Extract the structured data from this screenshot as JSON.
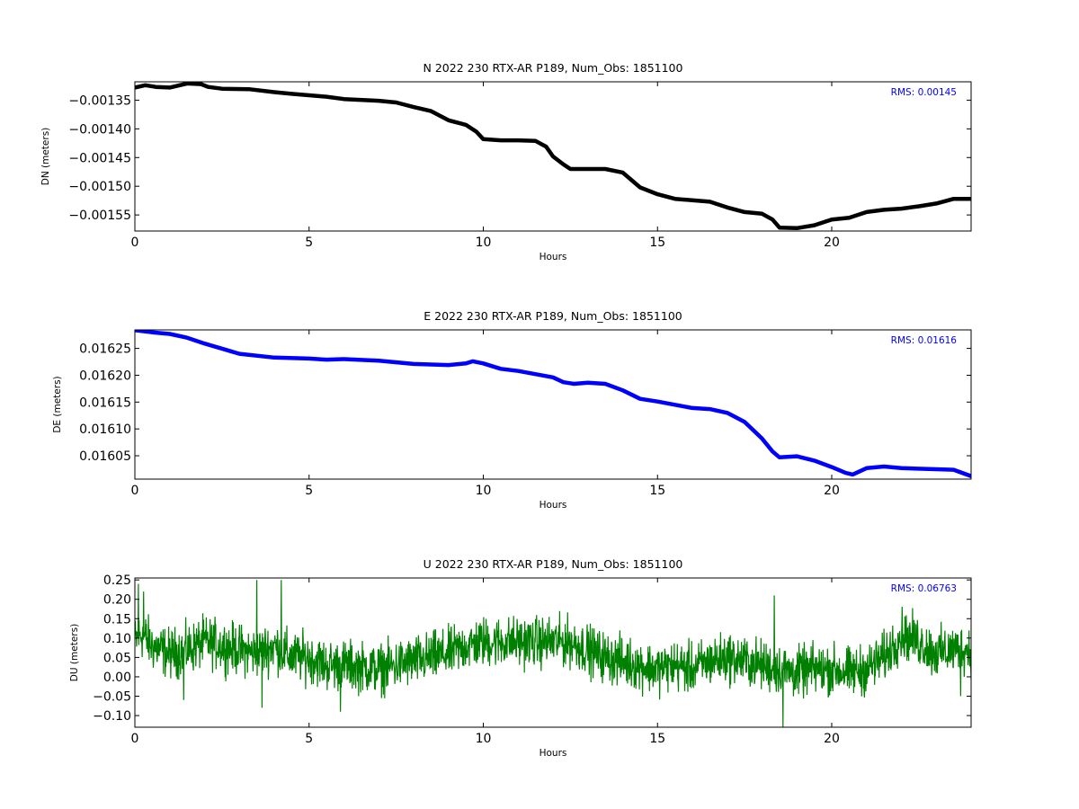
{
  "chart_data": [
    {
      "type": "line",
      "title": "N 2022 230 RTX-AR  P189, Num_Obs: 1851100",
      "xlabel": "Hours",
      "ylabel": "DN (meters)",
      "xlim": [
        0,
        24
      ],
      "ylim": [
        -0.001578,
        -0.001318
      ],
      "xticks": [
        0,
        5,
        10,
        15,
        20
      ],
      "yticks": [
        -0.00135,
        -0.0014,
        -0.00145,
        -0.0015,
        -0.00155
      ],
      "xtick_labels": [
        "0",
        "5",
        "10",
        "15",
        "20"
      ],
      "ytick_labels": [
        "−0.00135",
        "−0.00140",
        "−0.00145",
        "−0.00150",
        "−0.00155"
      ],
      "annotation": "RMS:  0.00145",
      "annotation_color": "#0000ff",
      "series": [
        {
          "color": "#000000",
          "x": [
            0,
            0.3,
            0.6,
            1.0,
            1.5,
            1.9,
            2.1,
            2.5,
            3.3,
            4.0,
            4.5,
            5.5,
            6.0,
            7.0,
            7.5,
            8.0,
            8.5,
            9.0,
            9.5,
            9.8,
            10.0,
            10.5,
            11.0,
            11.5,
            11.8,
            12.0,
            12.3,
            12.5,
            13.5,
            14.0,
            14.5,
            15.0,
            15.5,
            16.5,
            17.0,
            17.5,
            18.0,
            18.3,
            18.5,
            19.0,
            19.5,
            20.0,
            20.5,
            21.0,
            21.5,
            22.0,
            22.5,
            23.0,
            23.5,
            24.0
          ],
          "y": [
            -0.001328,
            -0.001324,
            -0.001327,
            -0.001328,
            -0.001321,
            -0.001322,
            -0.001327,
            -0.00133,
            -0.001331,
            -0.001336,
            -0.001339,
            -0.001344,
            -0.001348,
            -0.001351,
            -0.001354,
            -0.001362,
            -0.001369,
            -0.001385,
            -0.001393,
            -0.001405,
            -0.001418,
            -0.00142,
            -0.00142,
            -0.001421,
            -0.001431,
            -0.001448,
            -0.001462,
            -0.00147,
            -0.00147,
            -0.001476,
            -0.001502,
            -0.001514,
            -0.001522,
            -0.001527,
            -0.001537,
            -0.001545,
            -0.001548,
            -0.001558,
            -0.001572,
            -0.001573,
            -0.001568,
            -0.001558,
            -0.001555,
            -0.001545,
            -0.001541,
            -0.001539,
            -0.001535,
            -0.00153,
            -0.001522,
            -0.001522
          ]
        }
      ]
    },
    {
      "type": "line",
      "title": "E 2022 230 RTX-AR  P189, Num_Obs: 1851100",
      "xlabel": "Hours",
      "ylabel": "DE (meters)",
      "xlim": [
        0,
        24
      ],
      "ylim": [
        0.0160065,
        0.0162845
      ],
      "xticks": [
        0,
        5,
        10,
        15,
        20
      ],
      "yticks": [
        0.01625,
        0.0162,
        0.01615,
        0.0161,
        0.01605
      ],
      "xtick_labels": [
        "0",
        "5",
        "10",
        "15",
        "20"
      ],
      "ytick_labels": [
        "0.01625",
        "0.01620",
        "0.01615",
        "0.01610",
        "0.01605"
      ],
      "annotation": "RMS:  0.01616",
      "annotation_color": "#0000ff",
      "series": [
        {
          "color": "#0000ff",
          "x": [
            0,
            0.5,
            1.0,
            1.5,
            2.0,
            3.0,
            4.0,
            5.0,
            5.5,
            6.0,
            7.0,
            8.0,
            9.0,
            9.5,
            9.7,
            10.0,
            10.5,
            11.0,
            12.0,
            12.3,
            12.6,
            13.0,
            13.5,
            14.0,
            14.5,
            15.0,
            15.5,
            16.0,
            16.5,
            17.0,
            17.5,
            18.0,
            18.3,
            18.5,
            19.0,
            19.5,
            20.0,
            20.4,
            20.6,
            21.0,
            21.5,
            22.0,
            23.0,
            23.5,
            24.0
          ],
          "y": [
            0.016284,
            0.01628,
            0.016277,
            0.01627,
            0.016259,
            0.01624,
            0.016233,
            0.016231,
            0.016229,
            0.01623,
            0.016227,
            0.016221,
            0.016219,
            0.016222,
            0.016226,
            0.016222,
            0.016212,
            0.016208,
            0.016196,
            0.016187,
            0.016184,
            0.016186,
            0.016184,
            0.016172,
            0.016156,
            0.016151,
            0.016145,
            0.016139,
            0.016137,
            0.01613,
            0.016113,
            0.016082,
            0.016058,
            0.016047,
            0.016049,
            0.016041,
            0.016029,
            0.016018,
            0.016015,
            0.016027,
            0.01603,
            0.016027,
            0.016025,
            0.016024,
            0.016012
          ]
        }
      ]
    },
    {
      "type": "line",
      "title": "U 2022 230 RTX-AR  P189, Num_Obs: 1851100",
      "xlabel": "Hours",
      "ylabel": "DU (meters)",
      "xlim": [
        0,
        24
      ],
      "ylim": [
        -0.13,
        0.255
      ],
      "xticks": [
        0,
        5,
        10,
        15,
        20
      ],
      "yticks": [
        0.25,
        0.2,
        0.15,
        0.1,
        0.05,
        0.0,
        -0.05,
        -0.1
      ],
      "xtick_labels": [
        "0",
        "5",
        "10",
        "15",
        "20"
      ],
      "ytick_labels": [
        "0.25",
        "0.20",
        "0.15",
        "0.10",
        "0.05",
        "0.00",
        "−0.05",
        "−0.10"
      ],
      "annotation": "RMS:  0.06763",
      "annotation_color": "#0000ff",
      "series": [
        {
          "color": "#008000",
          "trend_x": [
            0,
            0.2,
            0.5,
            1.0,
            1.5,
            2.0,
            3.0,
            3.5,
            4.0,
            4.5,
            5.0,
            5.5,
            6.0,
            7.0,
            8.0,
            9.0,
            9.5,
            10.0,
            11.0,
            12.0,
            12.5,
            13.0,
            13.5,
            14.0,
            14.5,
            15.0,
            15.5,
            16.0,
            16.5,
            17.0,
            17.5,
            18.0,
            18.5,
            19.0,
            19.5,
            20.0,
            20.5,
            21.0,
            21.5,
            22.0,
            22.5,
            23.0,
            23.5,
            24.0
          ],
          "trend_y": [
            0.09,
            0.11,
            0.08,
            0.06,
            0.07,
            0.09,
            0.07,
            0.06,
            0.08,
            0.05,
            0.05,
            0.03,
            0.03,
            0.02,
            0.04,
            0.06,
            0.08,
            0.09,
            0.09,
            0.09,
            0.09,
            0.07,
            0.05,
            0.04,
            0.03,
            0.02,
            0.03,
            0.02,
            0.04,
            0.05,
            0.04,
            0.03,
            0.02,
            0.01,
            0.02,
            0.02,
            0.01,
            0.02,
            0.05,
            0.11,
            0.09,
            0.06,
            0.07,
            0.07
          ],
          "noise_amplitude": 0.045,
          "spikes": [
            {
              "x": 0.1,
              "y": 0.24
            },
            {
              "x": 0.25,
              "y": 0.22
            },
            {
              "x": 3.5,
              "y": 0.25
            },
            {
              "x": 3.65,
              "y": -0.08
            },
            {
              "x": 4.2,
              "y": 0.25
            },
            {
              "x": 1.4,
              "y": -0.06
            },
            {
              "x": 5.9,
              "y": -0.09
            },
            {
              "x": 18.35,
              "y": 0.21
            },
            {
              "x": 18.6,
              "y": -0.13
            },
            {
              "x": 23.7,
              "y": -0.05
            }
          ]
        }
      ]
    }
  ]
}
